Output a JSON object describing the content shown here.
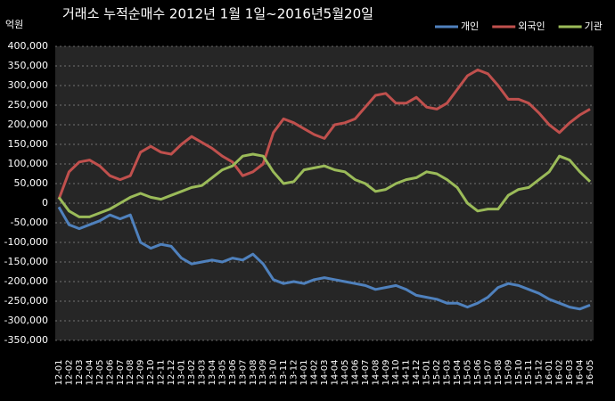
{
  "chart_data": {
    "type": "line",
    "title": "거래소 누적순매수 2012년 1월 1일~2016년5월20일",
    "y_label": "억원",
    "categories": [
      "12-01",
      "12-02",
      "12-03",
      "12-04",
      "12-05",
      "12-06",
      "12-07",
      "12-08",
      "12-09",
      "12-10",
      "12-11",
      "12-12",
      "13-01",
      "13-02",
      "13-03",
      "13-04",
      "13-05",
      "13-06",
      "13-07",
      "13-08",
      "13-09",
      "13-10",
      "13-11",
      "13-12",
      "14-01",
      "14-02",
      "14-03",
      "14-04",
      "14-05",
      "14-06",
      "14-07",
      "14-08",
      "14-09",
      "14-10",
      "14-11",
      "14-12",
      "15-01",
      "15-02",
      "15-03",
      "15-04",
      "15-05",
      "15-06",
      "15-07",
      "15-08",
      "15-09",
      "15-10",
      "15-11",
      "15-12",
      "16-01",
      "16-02",
      "16-03",
      "16-04",
      "16-05"
    ],
    "series": [
      {
        "name": "개인",
        "color": "#4f81bd",
        "values": [
          -10000,
          -55000,
          -65000,
          -55000,
          -45000,
          -30000,
          -40000,
          -30000,
          -100000,
          -115000,
          -105000,
          -110000,
          -140000,
          -155000,
          -150000,
          -145000,
          -150000,
          -140000,
          -145000,
          -130000,
          -155000,
          -195000,
          -205000,
          -200000,
          -205000,
          -195000,
          -190000,
          -195000,
          -200000,
          -205000,
          -210000,
          -220000,
          -215000,
          -210000,
          -220000,
          -235000,
          -240000,
          -245000,
          -255000,
          -255000,
          -265000,
          -255000,
          -240000,
          -215000,
          -205000,
          -210000,
          -220000,
          -230000,
          -245000,
          -255000,
          -265000,
          -270000,
          -260000
        ]
      },
      {
        "name": "외국인",
        "color": "#c0504d",
        "values": [
          10000,
          80000,
          105000,
          110000,
          95000,
          70000,
          60000,
          70000,
          130000,
          145000,
          130000,
          125000,
          150000,
          170000,
          155000,
          140000,
          120000,
          105000,
          70000,
          80000,
          100000,
          180000,
          215000,
          205000,
          190000,
          175000,
          165000,
          200000,
          205000,
          215000,
          245000,
          275000,
          280000,
          255000,
          255000,
          270000,
          245000,
          240000,
          255000,
          290000,
          325000,
          340000,
          330000,
          300000,
          265000,
          265000,
          255000,
          230000,
          200000,
          180000,
          205000,
          225000,
          240000
        ]
      },
      {
        "name": "기관",
        "color": "#9bbb59",
        "values": [
          15000,
          -20000,
          -35000,
          -35000,
          -25000,
          -15000,
          0,
          15000,
          25000,
          15000,
          10000,
          20000,
          30000,
          40000,
          45000,
          65000,
          85000,
          95000,
          120000,
          125000,
          120000,
          80000,
          50000,
          55000,
          85000,
          90000,
          95000,
          85000,
          80000,
          60000,
          50000,
          30000,
          35000,
          50000,
          60000,
          65000,
          80000,
          75000,
          60000,
          40000,
          0,
          -20000,
          -15000,
          -15000,
          20000,
          35000,
          40000,
          60000,
          80000,
          120000,
          110000,
          80000,
          55000
        ]
      }
    ],
    "ylim": [
      -350000,
      400000
    ],
    "yticks": [
      {
        "value": -350000,
        "label": "-350,000"
      },
      {
        "value": -300000,
        "label": "-300,000"
      },
      {
        "value": -250000,
        "label": "-250,000"
      },
      {
        "value": -200000,
        "label": "-200,000"
      },
      {
        "value": -150000,
        "label": "-150,000"
      },
      {
        "value": -100000,
        "label": "-100,000"
      },
      {
        "value": -50000,
        "label": "-50,000"
      },
      0,
      {
        "value": 50000,
        "label": "50,000"
      },
      {
        "value": 100000,
        "label": "100,000"
      },
      {
        "value": 150000,
        "label": "150,000"
      },
      {
        "value": 200000,
        "label": "200,000"
      },
      {
        "value": 250000,
        "label": "250,000"
      },
      {
        "value": 300000,
        "label": "300,000"
      },
      {
        "value": 350000,
        "label": "350,000"
      },
      {
        "value": 400000,
        "label": "400,000"
      }
    ],
    "grid": true,
    "legend": "top-right"
  }
}
